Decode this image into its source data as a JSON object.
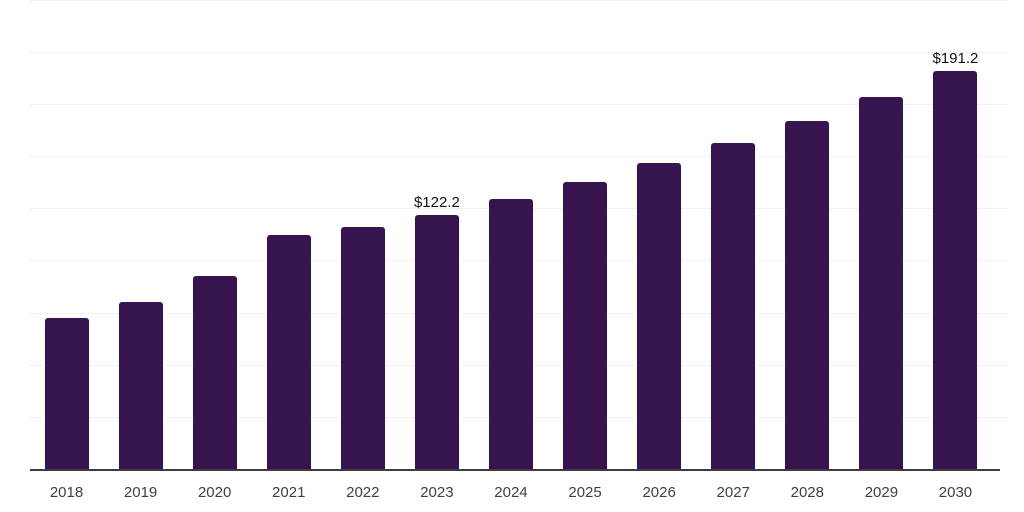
{
  "chart_data": {
    "type": "bar",
    "title": "",
    "xlabel": "",
    "ylabel": "",
    "categories": [
      "2018",
      "2019",
      "2020",
      "2021",
      "2022",
      "2023",
      "2024",
      "2025",
      "2026",
      "2027",
      "2028",
      "2029",
      "2030"
    ],
    "values": [
      72.7,
      80.3,
      93.0,
      112.6,
      116.5,
      122.2,
      129.9,
      138.2,
      147.3,
      156.6,
      167.4,
      178.9,
      191.2
    ],
    "data_labels": {
      "2023": "$122.2",
      "2030": "$191.2"
    },
    "ylim": [
      0,
      225
    ],
    "grid_step": 25,
    "grid": true,
    "legend": false,
    "colors": {
      "bar": "#37134f",
      "gridline": "#f1f1f1",
      "axis_line": "#3d3d3d",
      "tick_label": "#3f3f3f",
      "value_label": "#111111",
      "background": "#ffffff"
    }
  }
}
